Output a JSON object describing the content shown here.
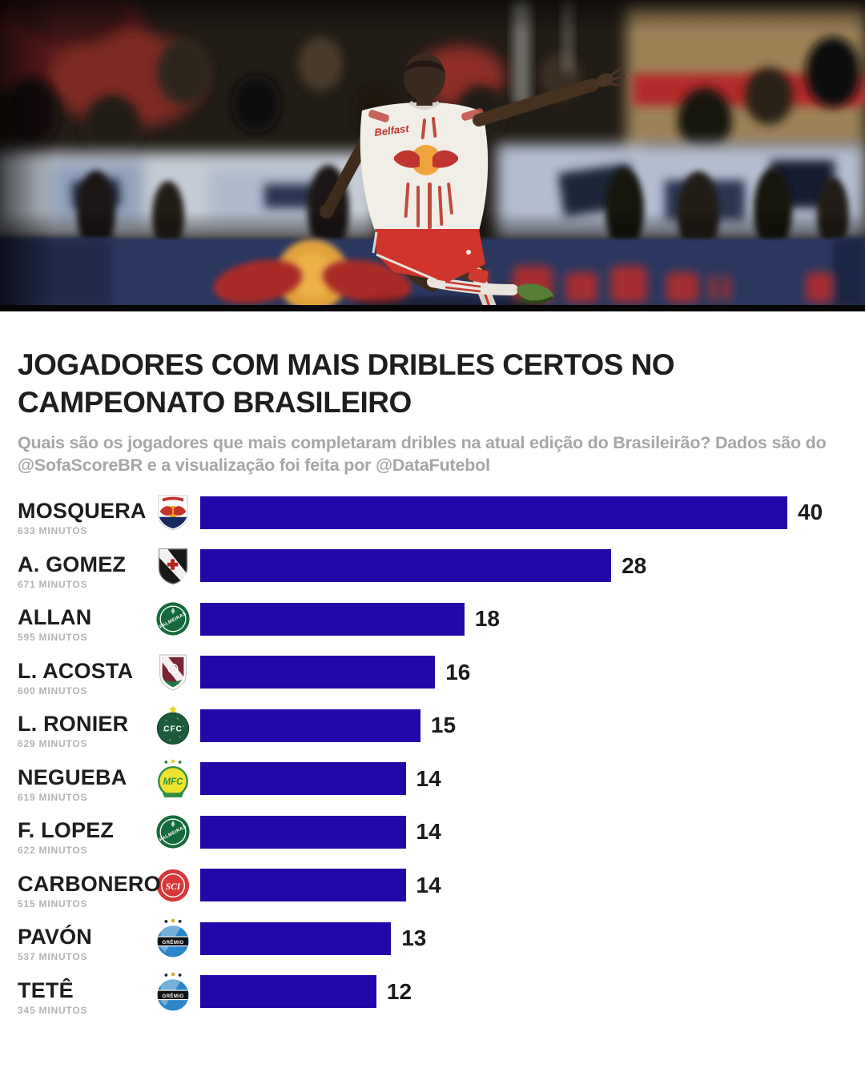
{
  "header": {
    "title": "JOGADORES COM MAIS DRIBLES CERTOS NO CAMPEONATO BRASILEIRO",
    "subtitle": "Quais são os jogadores que mais completaram dribles na atual edição do Brasileirão? Dados são do @SofaScoreBR e a visualização foi feita por @DataFutebol"
  },
  "photo": {
    "description": "Red Bull Bragantino player mid-kick in front of a blurred stadium crowd and Red Bull advertising board",
    "jersey_sponsor": "Belfast"
  },
  "colors": {
    "background": "#ffffff",
    "bar": "#2307A8",
    "title_text": "#1e1e1e",
    "subtitle_text": "#a6a6a6",
    "minutes_text": "#b4b4b4",
    "value_text": "#1b1b1b"
  },
  "chart_data": {
    "type": "bar",
    "orientation": "horizontal",
    "title": "Jogadores com mais dribles certos no Campeonato Brasileiro",
    "max_value": 40,
    "bar_color": "#2307A8",
    "rows": [
      {
        "player": "MOSQUERA",
        "minutes_label": "633 MINUTOS",
        "team": "Red Bull Bragantino",
        "crest": "bragantino",
        "value": 40
      },
      {
        "player": "A. GOMEZ",
        "minutes_label": "671 MINUTOS",
        "team": "Vasco da Gama",
        "crest": "vasco",
        "value": 28
      },
      {
        "player": "ALLAN",
        "minutes_label": "595 MINUTOS",
        "team": "Palmeiras",
        "crest": "palmeiras",
        "value": 18
      },
      {
        "player": "L. ACOSTA",
        "minutes_label": "600 MINUTOS",
        "team": "Fluminense",
        "crest": "fluminense",
        "value": 16
      },
      {
        "player": "L. RONIER",
        "minutes_label": "629 MINUTOS",
        "team": "Coritiba",
        "crest": "coritiba",
        "value": 15
      },
      {
        "player": "NEGUEBA",
        "minutes_label": "619 MINUTOS",
        "team": "Mirassol",
        "crest": "mirassol",
        "value": 14
      },
      {
        "player": "F. LOPEZ",
        "minutes_label": "622 MINUTOS",
        "team": "Palmeiras",
        "crest": "palmeiras",
        "value": 14
      },
      {
        "player": "CARBONERO",
        "minutes_label": "515 MINUTOS",
        "team": "Internacional",
        "crest": "internacional",
        "value": 14
      },
      {
        "player": "PAVÓN",
        "minutes_label": "537 MINUTOS",
        "team": "Grêmio",
        "crest": "gremio",
        "value": 13
      },
      {
        "player": "TETÊ",
        "minutes_label": "345 MINUTOS",
        "team": "Grêmio",
        "crest": "gremio",
        "value": 12
      }
    ]
  },
  "crests": {
    "bragantino": {
      "team": "Red Bull Bragantino",
      "shield": "#ffffff",
      "outline": "#cccccc",
      "wordmark": "#c5332d",
      "bulls": "#c5332d",
      "sun": "#f2a71f",
      "band": "#1b2a5e"
    },
    "vasco": {
      "team": "Vasco da Gama",
      "shield": "#181818",
      "outline": "#5a5a5a",
      "sash": "#f2f2f2",
      "cross": "#b3231b"
    },
    "palmeiras": {
      "team": "Palmeiras",
      "field": "#156a3c",
      "ring": "#ffffff",
      "text": "#ffffff",
      "label": "PALMEIRAS"
    },
    "fluminense": {
      "team": "Fluminense",
      "shield": "#ffffff",
      "outline": "#b9b9b9",
      "inner": "#7b2433",
      "band": "#ffffff",
      "bottom": "#1e7a44"
    },
    "coritiba": {
      "team": "Coritiba",
      "field": "#1d5a39",
      "ring": "#0f3d26",
      "text": "#ffffff",
      "star": "#f0d51e",
      "label": "CFC"
    },
    "mirassol": {
      "team": "Mirassol",
      "field": "#efe331",
      "ring": "#2f8f3f",
      "text": "#2f8f3f",
      "stars": "#2f8f3f",
      "star_mid": "#e8d22c",
      "label": "MFC"
    },
    "internacional": {
      "team": "Internacional",
      "field": "#d8373a",
      "ring": "#ffffff",
      "text": "#ffffff",
      "label": "SCI"
    },
    "gremio": {
      "team": "Grêmio",
      "field": "#2a86c8",
      "band": "#101010",
      "sash": "#ffffff",
      "text": "#ffffff",
      "stars": "#d4af37",
      "label": "GRÊMIO"
    }
  }
}
